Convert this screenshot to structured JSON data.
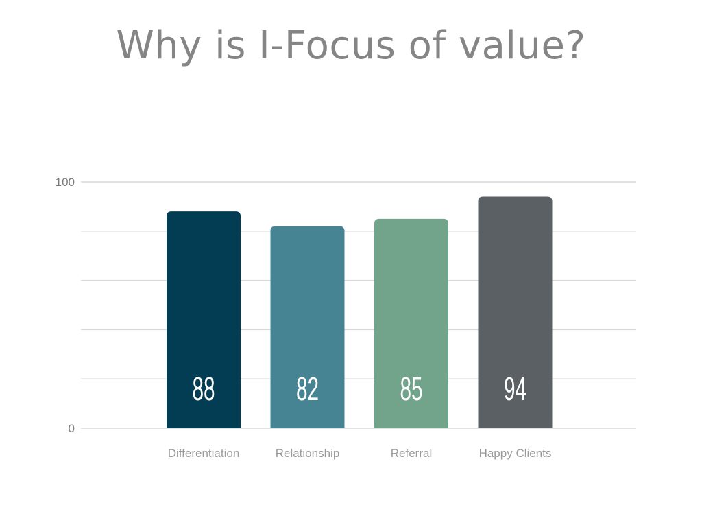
{
  "slide": {
    "title": "Why is I-Focus of value?"
  },
  "chart_data": {
    "type": "bar",
    "categories": [
      "Differentiation",
      "Relationship",
      "Referral",
      "Happy Clients"
    ],
    "values": [
      88,
      82,
      85,
      94
    ],
    "value_labels": [
      "88",
      "82",
      "85",
      "94"
    ],
    "colors": [
      "#023d54",
      "#478493",
      "#72a38b",
      "#5b6064"
    ],
    "ylim": [
      0,
      100
    ],
    "y_tick_labels": [
      "0",
      "100"
    ],
    "gridlines": 5,
    "grid": true,
    "legend": "none"
  }
}
